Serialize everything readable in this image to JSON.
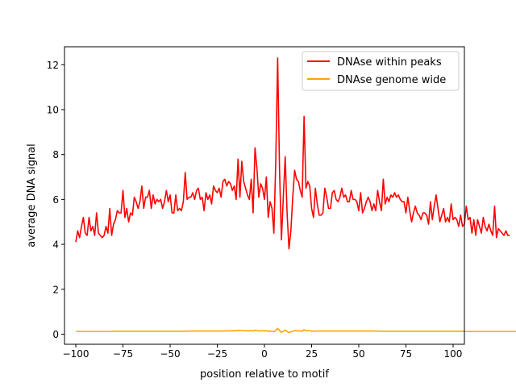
{
  "chart_data": {
    "type": "line",
    "xlabel": "position relative to motif",
    "ylabel": "average DNA signal",
    "xlim": [
      -106,
      106
    ],
    "ylim": [
      -0.45,
      12.8
    ],
    "x_start": -100,
    "x_step": 1,
    "grid": false,
    "legend_placement": "top-right",
    "xticks": [
      {
        "value": -100,
        "label": "−100"
      },
      {
        "value": -75,
        "label": "−75"
      },
      {
        "value": -50,
        "label": "−50"
      },
      {
        "value": -25,
        "label": "−25"
      },
      {
        "value": 0,
        "label": "0"
      },
      {
        "value": 25,
        "label": "25"
      },
      {
        "value": 50,
        "label": "50"
      },
      {
        "value": 75,
        "label": "75"
      },
      {
        "value": 100,
        "label": "100"
      }
    ],
    "yticks": [
      {
        "value": 0,
        "label": "0"
      },
      {
        "value": 2,
        "label": "2"
      },
      {
        "value": 4,
        "label": "4"
      },
      {
        "value": 6,
        "label": "6"
      },
      {
        "value": 8,
        "label": "8"
      },
      {
        "value": 10,
        "label": "10"
      },
      {
        "value": 12,
        "label": "12"
      }
    ],
    "series": [
      {
        "name": "DNAse within peaks",
        "color": "#ff0000",
        "values": [
          4.1,
          4.6,
          4.3,
          4.8,
          5.2,
          4.5,
          4.4,
          5.2,
          4.6,
          4.8,
          4.4,
          5.4,
          4.5,
          4.4,
          4.3,
          4.4,
          4.8,
          4.5,
          5.6,
          4.4,
          4.9,
          5.1,
          5.5,
          5.4,
          5.4,
          6.4,
          5.2,
          5.6,
          5.0,
          5.4,
          5.3,
          6.1,
          5.9,
          5.6,
          5.9,
          6.6,
          5.6,
          6.1,
          6.1,
          6.4,
          5.6,
          6.2,
          5.8,
          6.0,
          5.9,
          6.0,
          5.6,
          5.9,
          6.4,
          5.9,
          6.2,
          5.4,
          5.4,
          6.2,
          5.5,
          5.6,
          5.5,
          5.9,
          7.2,
          6.0,
          6.1,
          6.1,
          6.3,
          6.0,
          6.4,
          6.5,
          6.0,
          6.1,
          5.5,
          6.3,
          6.0,
          6.2,
          5.8,
          6.6,
          6.4,
          6.3,
          6.5,
          6.1,
          6.8,
          6.9,
          6.6,
          6.8,
          6.7,
          6.4,
          6.6,
          6.0,
          7.8,
          6.1,
          7.7,
          6.8,
          6.5,
          6.2,
          6.0,
          6.9,
          5.4,
          8.3,
          7.4,
          6.1,
          6.7,
          6.5,
          6.0,
          7.0,
          5.2,
          5.9,
          5.6,
          4.5,
          7.7,
          12.3,
          7.3,
          4.2,
          6.1,
          7.9,
          5.4,
          3.8,
          4.6,
          6.1,
          7.3,
          6.9,
          6.8,
          6.4,
          6.1,
          9.7,
          6.5,
          6.8,
          6.6,
          5.6,
          5.2,
          6.5,
          5.8,
          5.3,
          5.3,
          5.4,
          6.5,
          6.1,
          5.6,
          5.6,
          6.3,
          6.4,
          6.0,
          5.9,
          6.1,
          6.5,
          6.1,
          6.2,
          5.9,
          5.9,
          6.4,
          6.0,
          6.0,
          5.9,
          5.5,
          6.3,
          5.4,
          5.6,
          5.9,
          6.1,
          5.9,
          5.5,
          5.8,
          5.5,
          6.4,
          5.9,
          5.5,
          6.9,
          5.8,
          6.1,
          5.9,
          6.2,
          6.1,
          6.3,
          6.1,
          6.2,
          6.0,
          5.9,
          5.9,
          5.4,
          6.1,
          5.5,
          5.0,
          5.4,
          5.7,
          5.4,
          5.3,
          5.1,
          5.4,
          5.4,
          5.3,
          4.9,
          5.9,
          5.1,
          5.7,
          6.2,
          5.6,
          5.0,
          5.3,
          5.6,
          5.0,
          5.2,
          5.0,
          5.8,
          5.1,
          5.2,
          5.1,
          4.8,
          5.3,
          4.8,
          4.9,
          5.7,
          5.1,
          5.2,
          4.5,
          5.1,
          4.4,
          5.1,
          4.8,
          4.5,
          5.2,
          4.8,
          4.6,
          4.9,
          4.6,
          4.4,
          5.7,
          4.3,
          4.7,
          4.6,
          4.5,
          4.4,
          4.6,
          4.4,
          4.4
        ]
      },
      {
        "name": "DNAse genome wide",
        "color": "#ffa500",
        "values": [
          0.12,
          0.12,
          0.12,
          0.12,
          0.12,
          0.12,
          0.12,
          0.12,
          0.12,
          0.12,
          0.12,
          0.12,
          0.12,
          0.12,
          0.12,
          0.12,
          0.12,
          0.12,
          0.12,
          0.12,
          0.13,
          0.13,
          0.13,
          0.13,
          0.13,
          0.13,
          0.13,
          0.13,
          0.13,
          0.13,
          0.13,
          0.13,
          0.13,
          0.13,
          0.13,
          0.13,
          0.13,
          0.13,
          0.13,
          0.13,
          0.13,
          0.13,
          0.13,
          0.13,
          0.13,
          0.13,
          0.13,
          0.13,
          0.13,
          0.13,
          0.13,
          0.13,
          0.13,
          0.13,
          0.13,
          0.13,
          0.13,
          0.13,
          0.13,
          0.13,
          0.14,
          0.14,
          0.14,
          0.14,
          0.14,
          0.14,
          0.14,
          0.14,
          0.14,
          0.14,
          0.14,
          0.14,
          0.14,
          0.14,
          0.14,
          0.14,
          0.14,
          0.14,
          0.14,
          0.14,
          0.15,
          0.15,
          0.15,
          0.15,
          0.15,
          0.15,
          0.17,
          0.16,
          0.16,
          0.16,
          0.15,
          0.15,
          0.15,
          0.16,
          0.14,
          0.18,
          0.16,
          0.14,
          0.15,
          0.15,
          0.14,
          0.16,
          0.12,
          0.14,
          0.13,
          0.11,
          0.17,
          0.26,
          0.16,
          0.08,
          0.13,
          0.18,
          0.12,
          0.07,
          0.1,
          0.13,
          0.16,
          0.15,
          0.15,
          0.14,
          0.13,
          0.2,
          0.15,
          0.16,
          0.15,
          0.13,
          0.13,
          0.14,
          0.14,
          0.14,
          0.14,
          0.14,
          0.14,
          0.14,
          0.14,
          0.14,
          0.14,
          0.14,
          0.14,
          0.14,
          0.14,
          0.14,
          0.14,
          0.14,
          0.14,
          0.14,
          0.14,
          0.14,
          0.14,
          0.14,
          0.14,
          0.14,
          0.14,
          0.14,
          0.14,
          0.14,
          0.14,
          0.14,
          0.14,
          0.14,
          0.14,
          0.13,
          0.13,
          0.13,
          0.13,
          0.13,
          0.13,
          0.13,
          0.13,
          0.13,
          0.13,
          0.13,
          0.13,
          0.13,
          0.13,
          0.13,
          0.13,
          0.13,
          0.13,
          0.13,
          0.13,
          0.13,
          0.13,
          0.13,
          0.13,
          0.13,
          0.13,
          0.13,
          0.13,
          0.13,
          0.13,
          0.13,
          0.13,
          0.13,
          0.13,
          0.13,
          0.13,
          0.13,
          0.13,
          0.13,
          0.13,
          0.13,
          0.13,
          0.13,
          0.13,
          0.13,
          0.12,
          0.12,
          0.12,
          0.12,
          0.12,
          0.12,
          0.12,
          0.12,
          0.12,
          0.12,
          0.12,
          0.12,
          0.12,
          0.12,
          0.12,
          0.12,
          0.12,
          0.12,
          0.12,
          0.12,
          0.12,
          0.12,
          0.12,
          0.12,
          0.12,
          0.12,
          0.12,
          0.12,
          0.12,
          0.12,
          0.12
        ]
      }
    ]
  }
}
